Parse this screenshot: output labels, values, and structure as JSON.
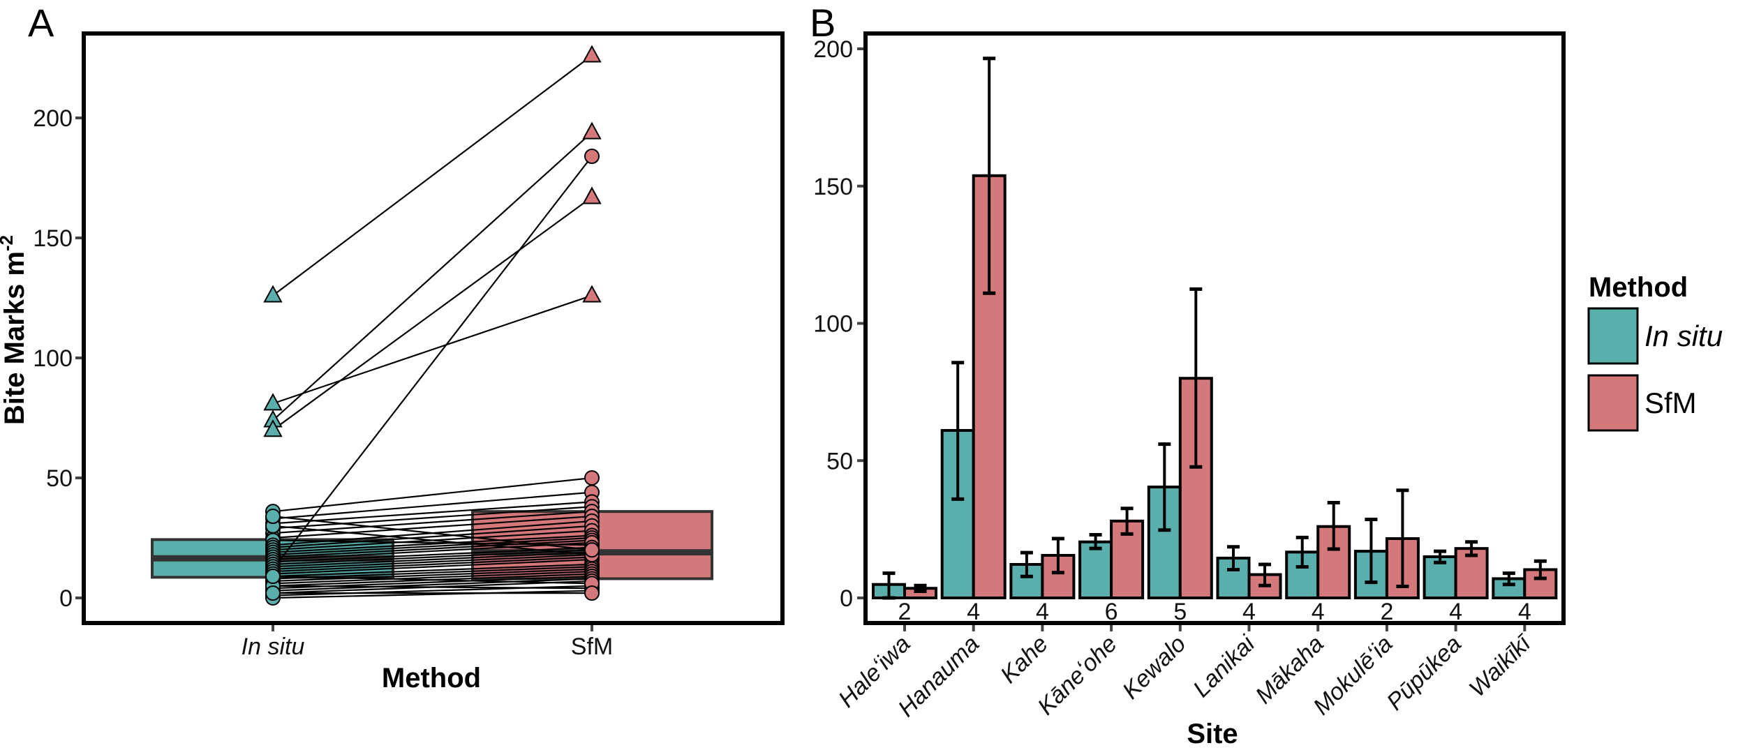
{
  "chart_data": [
    {
      "panel": "A",
      "type": "box+paired-scatter",
      "xlabel": "Method",
      "ylabel": "Bite Marks m",
      "ylabel_sup": "-2",
      "categories": [
        "In situ",
        "SfM"
      ],
      "ylim": [
        -10,
        235
      ],
      "yticks": [
        0,
        50,
        100,
        150,
        200
      ],
      "boxes": [
        {
          "name": "In situ",
          "q1": 8.6,
          "median": 16.5,
          "q3": 24.3
        },
        {
          "name": "SfM",
          "q1": 8,
          "median": 19,
          "q3": 36
        }
      ],
      "pairs_triangle": [
        [
          126,
          226
        ],
        [
          81,
          126
        ],
        [
          74,
          194
        ],
        [
          70,
          167
        ]
      ],
      "pairs_circle": [
        [
          12,
          184
        ],
        [
          36,
          50
        ],
        [
          33,
          44
        ],
        [
          31,
          40
        ],
        [
          29,
          38
        ],
        [
          27,
          36
        ],
        [
          25,
          34
        ],
        [
          24,
          22
        ],
        [
          22,
          32
        ],
        [
          21,
          30
        ],
        [
          20,
          28
        ],
        [
          19,
          26
        ],
        [
          18,
          25
        ],
        [
          17,
          24
        ],
        [
          16,
          23
        ],
        [
          15,
          21
        ],
        [
          14,
          20
        ],
        [
          13,
          19
        ],
        [
          12,
          18
        ],
        [
          11,
          17
        ],
        [
          10,
          16
        ],
        [
          9,
          14
        ],
        [
          8,
          13
        ],
        [
          7,
          12
        ],
        [
          6,
          11
        ],
        [
          5,
          10
        ],
        [
          4,
          9
        ],
        [
          3,
          8
        ],
        [
          2,
          7
        ],
        [
          1,
          5
        ],
        [
          0,
          3
        ],
        [
          5,
          4
        ],
        [
          9,
          6
        ],
        [
          30,
          18
        ],
        [
          34,
          20
        ],
        [
          2,
          2
        ]
      ]
    },
    {
      "panel": "B",
      "type": "bar",
      "xlabel": "Site",
      "ylabel": "",
      "ylim": [
        -10,
        215
      ],
      "yticks": [
        0,
        50,
        100,
        150,
        200
      ],
      "categories": [
        "Haleʻiwa",
        "Hanauma",
        "Kahe",
        "Kāneʻohe",
        "Kewalo",
        "Lanikai",
        "Mākaha",
        "Mokulēʻia",
        "Pūpūkea",
        "Waikīkī"
      ],
      "n": [
        "2",
        "4",
        "4",
        "6",
        "5",
        "4",
        "4",
        "2",
        "4",
        "4"
      ],
      "series": [
        {
          "name": "In situ",
          "values": [
            4.9,
            61,
            12.2,
            20.4,
            40.4,
            14.5,
            16.7,
            17,
            15,
            7
          ],
          "err_low": [
            0,
            36,
            7.8,
            18,
            24.7,
            10.3,
            11.3,
            5.7,
            12.9,
            4.9
          ],
          "err_high": [
            9,
            85.7,
            16.5,
            23,
            56,
            18.6,
            22,
            28.6,
            17,
            9
          ]
        },
        {
          "name": "SfM",
          "values": [
            3.5,
            153.8,
            15.5,
            28,
            80,
            8.5,
            26,
            21.6,
            18,
            10.3
          ],
          "err_low": [
            2.4,
            111,
            9.2,
            23.3,
            47.7,
            4.5,
            17.8,
            4.2,
            15.5,
            7.1
          ],
          "err_high": [
            4.5,
            196.5,
            21.6,
            32.6,
            112.5,
            12.2,
            34.7,
            39.2,
            20.4,
            13.4
          ]
        }
      ],
      "legend": {
        "title": "Method",
        "entries": [
          "In situ",
          "SfM"
        ],
        "placement": "right"
      }
    }
  ],
  "panel_labels": [
    "A",
    "B"
  ],
  "colors": {
    "in_situ": "#5AAFAC",
    "sfm": "#D4787C"
  }
}
